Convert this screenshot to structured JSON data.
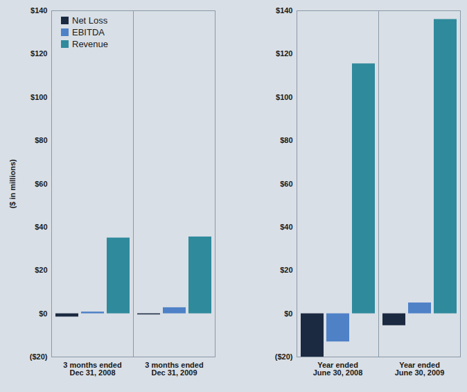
{
  "chart_data": {
    "type": "bar",
    "categories": [
      "3 months ended Dec 31, 2008",
      "3 months ended Dec 31, 2009",
      null,
      "Year ended June 30, 2008",
      "Year ended June 30, 2009"
    ],
    "series": [
      {
        "name": "Net Loss",
        "color": "#1b2a41",
        "values": [
          -1.5,
          -0.5,
          null,
          -20,
          -5.5
        ]
      },
      {
        "name": "EBITDA",
        "color": "#4f81c7",
        "values": [
          0.8,
          2.8,
          null,
          -13,
          5
        ]
      },
      {
        "name": "Revenue",
        "color": "#2f8a9c",
        "values": [
          35,
          35.5,
          null,
          115.5,
          136
        ]
      }
    ],
    "y_label": "($ in millions)",
    "ylim": [
      -20,
      140
    ],
    "yticks": [
      {
        "value": -20,
        "label": "($20)"
      },
      {
        "value": 0,
        "label": "$0"
      },
      {
        "value": 20,
        "label": "$20"
      },
      {
        "value": 40,
        "label": "$40"
      },
      {
        "value": 60,
        "label": "$60"
      },
      {
        "value": 80,
        "label": "$80"
      },
      {
        "value": 100,
        "label": "$100"
      },
      {
        "value": 120,
        "label": "$120"
      },
      {
        "value": 140,
        "label": "$140"
      }
    ],
    "legend": "top-left",
    "grid": false
  }
}
